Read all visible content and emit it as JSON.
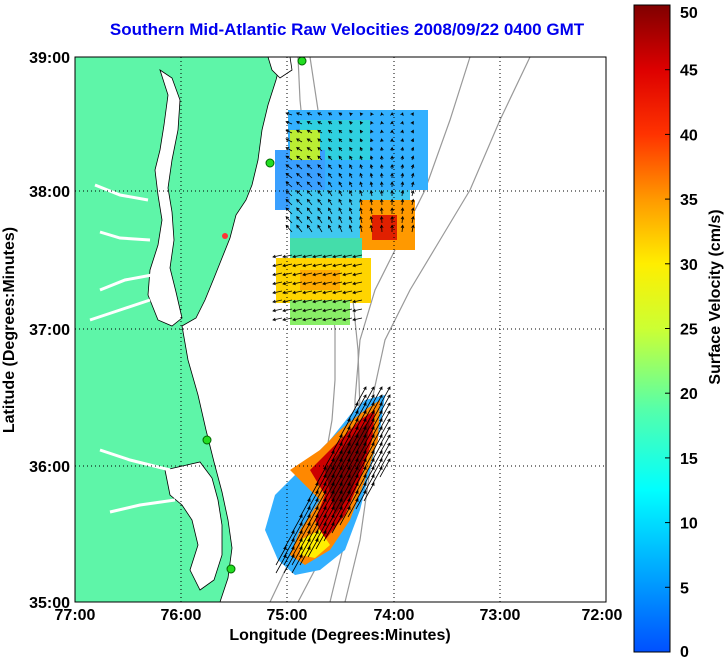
{
  "title": "Southern Mid-Atlantic Raw Velocities 2008/09/22 0400 GMT",
  "x_axis": {
    "label": "Longitude (Degrees:Minutes)",
    "ticks": [
      "77:00",
      "76:00",
      "75:00",
      "74:00",
      "73:00",
      "72:00"
    ]
  },
  "y_axis": {
    "label": "Latitude (Degrees:Minutes)",
    "ticks": [
      "39:00",
      "38:00",
      "37:00",
      "36:00",
      "35:00"
    ]
  },
  "colorbar": {
    "label": "Surface Velocity (cm/s)",
    "ticks": [
      "50",
      "45",
      "40",
      "35",
      "30",
      "25",
      "20",
      "15",
      "10",
      "5",
      "0"
    ],
    "min": 0,
    "max": 50
  },
  "colors": {
    "land": "#5ef5a8",
    "title": "#0000ee",
    "station": "#22dd22"
  },
  "chart_data": {
    "type": "map",
    "x_range_deg_west": [
      77,
      72
    ],
    "y_range_deg_north": [
      35,
      39
    ],
    "grid": true,
    "colormap": "jet"
  }
}
